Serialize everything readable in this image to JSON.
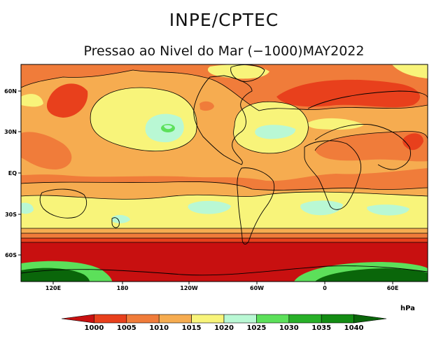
{
  "header": {
    "org": "INPE/CPTEC",
    "subtitle": "Pressao ao Nivel do Mar (−1000)MAY2022"
  },
  "axes": {
    "lon_ticks": [
      "120E",
      "180",
      "120W",
      "60W",
      "0",
      "60E"
    ],
    "lat_ticks": [
      "60N",
      "30N",
      "EQ",
      "30S",
      "60S"
    ]
  },
  "legend": {
    "unit": "hPa",
    "levels": [
      "1000",
      "1005",
      "1010",
      "1015",
      "1020",
      "1025",
      "1030",
      "1035",
      "1040"
    ],
    "colors": [
      "#c81010",
      "#e8401c",
      "#f07c3a",
      "#f6ac50",
      "#f8f47a",
      "#b9f8d4",
      "#5ce05a",
      "#28b028",
      "#138c13",
      "#0a660a"
    ]
  }
}
